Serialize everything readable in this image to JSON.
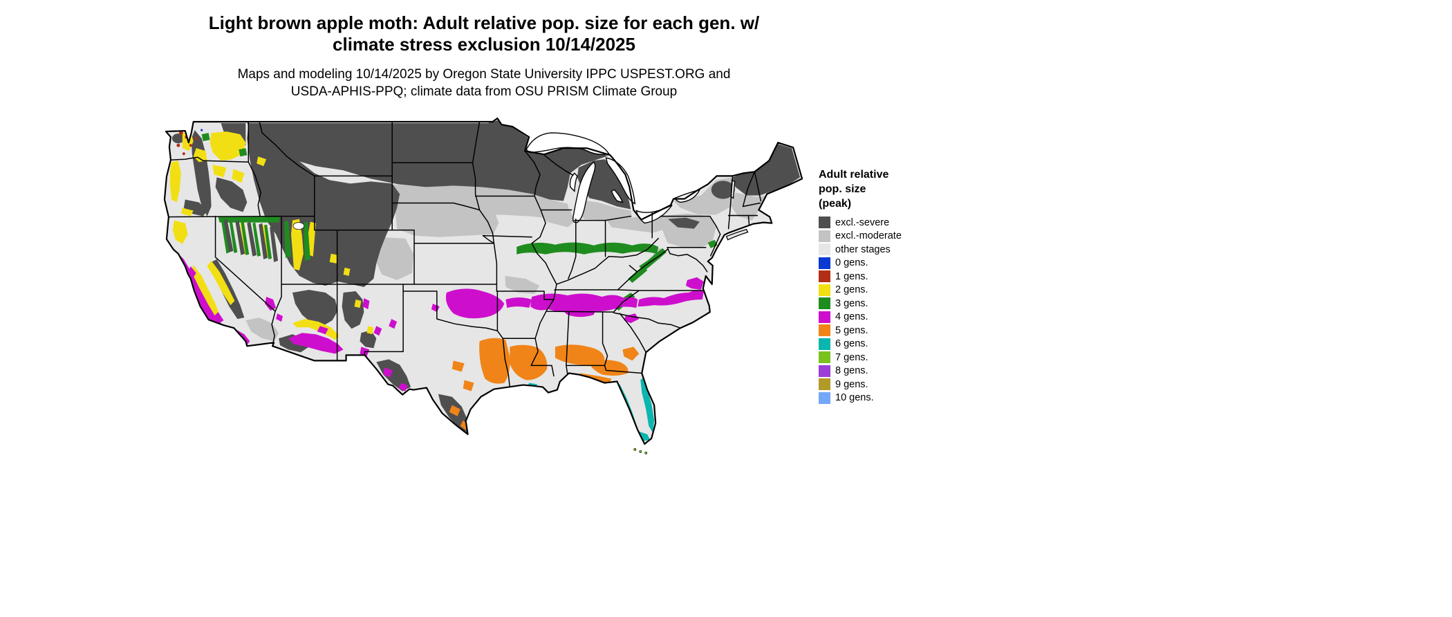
{
  "header": {
    "title_line1": "Light brown apple moth: Adult relative pop. size for each gen. w/",
    "title_line2": "climate stress exclusion 10/14/2025",
    "subtitle_line1": "Maps and modeling 10/14/2025 by Oregon State University IPPC USPEST.ORG and",
    "subtitle_line2": "USDA-APHIS-PPQ; climate data from OSU PRISM Climate Group"
  },
  "legend": {
    "title_lines": [
      "Adult relative",
      "pop. size",
      "(peak)"
    ],
    "items": [
      {
        "label": "excl.-severe",
        "color": "#4f4f4f"
      },
      {
        "label": "excl.-moderate",
        "color": "#c3c3c3"
      },
      {
        "label": "other stages",
        "color": "#e6e6e6"
      },
      {
        "label": "0 gens.",
        "color": "#0a3ad2"
      },
      {
        "label": "1 gens.",
        "color": "#b22f16"
      },
      {
        "label": "2 gens.",
        "color": "#f2df13"
      },
      {
        "label": "3 gens.",
        "color": "#1f8c1f"
      },
      {
        "label": "4 gens.",
        "color": "#cd0fcd"
      },
      {
        "label": "5 gens.",
        "color": "#f08418"
      },
      {
        "label": "6 gens.",
        "color": "#0ab6ae"
      },
      {
        "label": "7 gens.",
        "color": "#7bc21e"
      },
      {
        "label": "8 gens.",
        "color": "#9c3fd6"
      },
      {
        "label": "9 gens.",
        "color": "#b29a26"
      },
      {
        "label": "10 gens.",
        "color": "#74a7f7"
      }
    ]
  },
  "map": {
    "region_colors": {
      "excl_severe": "#4f4f4f",
      "excl_moderate": "#c3c3c3",
      "other_stages": "#e6e6e6",
      "gens0": "#0a3ad2",
      "gens1": "#b22f16",
      "gens2": "#f2df13",
      "gens3": "#1f8c1f",
      "gens4": "#cd0fcd",
      "gens5": "#f08418",
      "gens6": "#0ab6ae",
      "gens7": "#7bc21e",
      "water": "#ffffff"
    }
  }
}
